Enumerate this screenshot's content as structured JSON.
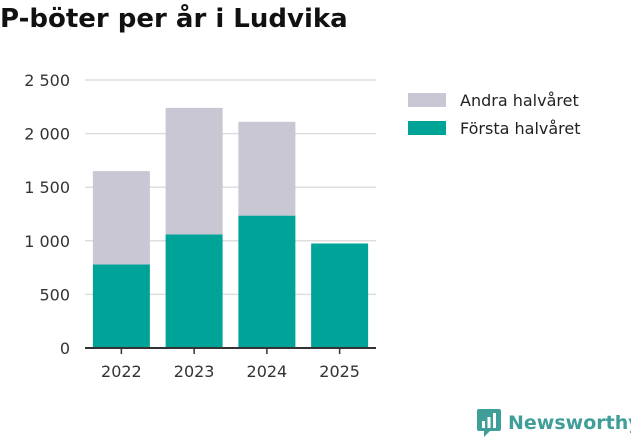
{
  "chart_data": {
    "type": "bar",
    "stacked": true,
    "title": "P-böter per år i Ludvika",
    "categories": [
      "2022",
      "2023",
      "2024",
      "2025"
    ],
    "series": [
      {
        "name": "Första halvåret",
        "values": [
          780,
          1060,
          1235,
          975
        ],
        "color": "#00a398"
      },
      {
        "name": "Andra halvåret",
        "values": [
          870,
          1180,
          875,
          0
        ],
        "color": "#c8c7d3"
      }
    ],
    "ylim": [
      0,
      2500
    ],
    "yticks": [
      0,
      500,
      1000,
      1500,
      2000,
      2500
    ],
    "ytick_labels": [
      "0",
      "500",
      "1 000",
      "1 500",
      "2 000",
      "2 500"
    ],
    "grid": true,
    "legend": {
      "placement": "right",
      "entries": [
        "Andra halvåret",
        "Första halvåret"
      ]
    }
  },
  "brand": {
    "name": "Newsworthy",
    "icon": "newsworthy-logo-icon",
    "color": "#3f9e97"
  }
}
